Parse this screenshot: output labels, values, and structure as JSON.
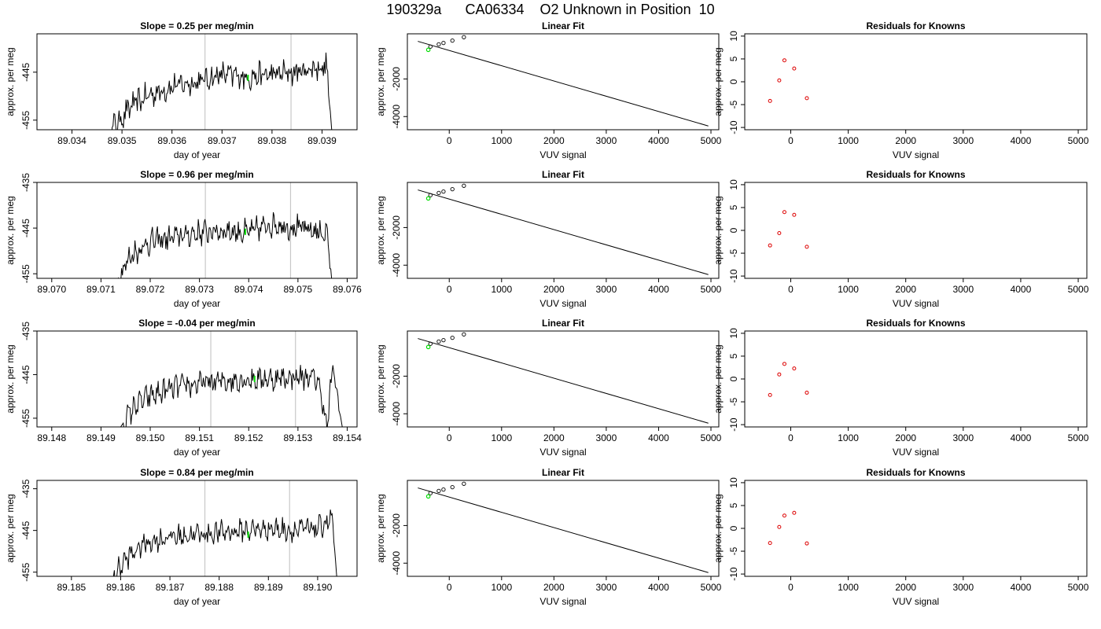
{
  "page": {
    "title": "190329a      CA06334    O2 Unknown in Position  10"
  },
  "chart_data": [
    {
      "panel": "slope-1",
      "type": "line",
      "title": "Slope =  0.25  per meg/min",
      "xlabel": "day of year",
      "ylabel": "approx. per meg",
      "xlim": [
        89.0333,
        89.0397
      ],
      "ylim": [
        -457,
        -437
      ],
      "xticks": [
        89.034,
        89.035,
        89.036,
        89.037,
        89.038,
        89.039
      ],
      "xtick_labels": [
        "89.034",
        "89.035",
        "89.036",
        "89.037",
        "89.038",
        "89.039"
      ],
      "yticks": [
        -455,
        -445
      ],
      "ytick_labels": [
        "-455",
        "-445"
      ],
      "vlines": [
        89.03666,
        89.03838
      ],
      "line_x_range": [
        89.0347,
        89.03918
      ],
      "line_start_y": -457,
      "line_trend": [
        [
          89.0347,
          -458
        ],
        [
          89.0352,
          -452
        ],
        [
          89.0355,
          -450
        ],
        [
          89.036,
          -448
        ],
        [
          89.0365,
          -447
        ],
        [
          89.037,
          -445.5
        ],
        [
          89.0375,
          -446
        ],
        [
          89.038,
          -445.5
        ],
        [
          89.0385,
          -445
        ],
        [
          89.0389,
          -444
        ],
        [
          89.0391,
          -444
        ],
        [
          89.0392,
          -458
        ]
      ],
      "highlight_point": [
        89.03752,
        -446.2
      ]
    },
    {
      "panel": "fit-1",
      "type": "scatter",
      "title": "Linear Fit",
      "xlabel": "VUV signal",
      "ylabel": "approx. per meg",
      "xlim": [
        -800,
        5150
      ],
      "ylim": [
        -4700,
        400
      ],
      "xticks": [
        0,
        1000,
        2000,
        3000,
        4000,
        5000
      ],
      "xtick_labels": [
        "0",
        "1000",
        "2000",
        "3000",
        "4000",
        "5000"
      ],
      "yticks": [
        -4000,
        -2000
      ],
      "ytick_labels": [
        "-4000",
        "-2000"
      ],
      "fit_line": [
        [
          -600,
          0
        ],
        [
          4950,
          -4500
        ]
      ],
      "knowns_x": [
        -360,
        -200,
        -110,
        60,
        280
      ],
      "knowns_y": [
        -280,
        -160,
        -86,
        40,
        220
      ],
      "unknown_point": [
        -400,
        -450
      ]
    },
    {
      "panel": "resid-1",
      "type": "scatter",
      "title": "Residuals for Knowns",
      "xlabel": "VUV signal",
      "ylabel": "approx. per meg",
      "xlim": [
        -800,
        5150
      ],
      "ylim": [
        -10.5,
        10.5
      ],
      "xticks": [
        0,
        1000,
        2000,
        3000,
        4000,
        5000
      ],
      "xtick_labels": [
        "0",
        "1000",
        "2000",
        "3000",
        "4000",
        "5000"
      ],
      "yticks": [
        -10,
        -5,
        0,
        5,
        10
      ],
      "ytick_labels": [
        "-10",
        "-5",
        "0",
        "5",
        "10"
      ],
      "x": [
        -360,
        -200,
        -110,
        60,
        280
      ],
      "y": [
        -4.2,
        0.3,
        4.7,
        2.9,
        -3.6
      ]
    },
    {
      "panel": "slope-2",
      "type": "line",
      "title": "Slope =  0.96  per meg/min",
      "xlabel": "day of year",
      "ylabel": "approx. per meg",
      "xlim": [
        89.0697,
        89.0762
      ],
      "ylim": [
        -456,
        -435
      ],
      "xticks": [
        89.07,
        89.071,
        89.072,
        89.073,
        89.074,
        89.075,
        89.076
      ],
      "xtick_labels": [
        "89.070",
        "89.071",
        "89.072",
        "89.073",
        "89.074",
        "89.075",
        "89.076"
      ],
      "yticks": [
        -455,
        -445,
        -435
      ],
      "ytick_labels": [
        "-455",
        "-445",
        "-435"
      ],
      "vlines": [
        89.07312,
        89.07485
      ],
      "line_x_range": [
        89.0713,
        89.0757
      ],
      "line_start_y": -456,
      "line_trend": [
        [
          89.0713,
          -457
        ],
        [
          89.0716,
          -451
        ],
        [
          89.072,
          -448
        ],
        [
          89.0725,
          -447
        ],
        [
          89.073,
          -446
        ],
        [
          89.0735,
          -445.5
        ],
        [
          89.074,
          -446
        ],
        [
          89.0745,
          -444
        ],
        [
          89.075,
          -445
        ],
        [
          89.0755,
          -446
        ],
        [
          89.0756,
          -446
        ],
        [
          89.0757,
          -458
        ]
      ],
      "highlight_point": [
        89.07393,
        -445.8
      ]
    },
    {
      "panel": "fit-2",
      "type": "scatter",
      "title": "Linear Fit",
      "xlabel": "VUV signal",
      "ylabel": "approx. per meg",
      "xlim": [
        -800,
        5150
      ],
      "ylim": [
        -4700,
        400
      ],
      "xticks": [
        0,
        1000,
        2000,
        3000,
        4000,
        5000
      ],
      "xtick_labels": [
        "0",
        "1000",
        "2000",
        "3000",
        "4000",
        "5000"
      ],
      "yticks": [
        -4000,
        -2000
      ],
      "ytick_labels": [
        "-4000",
        "-2000"
      ],
      "fit_line": [
        [
          -600,
          0
        ],
        [
          4950,
          -4500
        ]
      ],
      "knowns_x": [
        -360,
        -200,
        -110,
        60,
        280
      ],
      "knowns_y": [
        -280,
        -160,
        -86,
        40,
        220
      ],
      "unknown_point": [
        -400,
        -450
      ]
    },
    {
      "panel": "resid-2",
      "type": "scatter",
      "title": "Residuals for Knowns",
      "xlabel": "VUV signal",
      "ylabel": "approx. per meg",
      "xlim": [
        -800,
        5150
      ],
      "ylim": [
        -10.5,
        10.5
      ],
      "xticks": [
        0,
        1000,
        2000,
        3000,
        4000,
        5000
      ],
      "xtick_labels": [
        "0",
        "1000",
        "2000",
        "3000",
        "4000",
        "5000"
      ],
      "yticks": [
        -10,
        -5,
        0,
        5,
        10
      ],
      "ytick_labels": [
        "-10",
        "-5",
        "0",
        "5",
        "10"
      ],
      "x": [
        -360,
        -200,
        -110,
        60,
        280
      ],
      "y": [
        -3.3,
        -0.6,
        4.0,
        3.4,
        -3.6
      ]
    },
    {
      "panel": "slope-3",
      "type": "line",
      "title": "Slope =  -0.04  per meg/min",
      "xlabel": "day of year",
      "ylabel": "approx. per meg",
      "xlim": [
        89.1477,
        89.1542
      ],
      "ylim": [
        -457,
        -435
      ],
      "xticks": [
        89.148,
        89.149,
        89.15,
        89.151,
        89.152,
        89.153,
        89.154
      ],
      "xtick_labels": [
        "89.148",
        "89.149",
        "89.150",
        "89.151",
        "89.152",
        "89.153",
        "89.154"
      ],
      "yticks": [
        -455,
        -445,
        -435
      ],
      "ytick_labels": [
        "-455",
        "-445",
        "-435"
      ],
      "vlines": [
        89.15123,
        89.15295
      ],
      "line_x_range": [
        89.1494,
        89.1539
      ],
      "line_start_y": -457,
      "line_trend": [
        [
          89.1494,
          -457
        ],
        [
          89.1497,
          -452
        ],
        [
          89.15,
          -450
        ],
        [
          89.1505,
          -448
        ],
        [
          89.151,
          -447
        ],
        [
          89.1515,
          -446.5
        ],
        [
          89.152,
          -446
        ],
        [
          89.1525,
          -446
        ],
        [
          89.153,
          -445.5
        ],
        [
          89.1534,
          -446
        ],
        [
          89.1536,
          -457
        ],
        [
          89.1537,
          -443
        ],
        [
          89.1539,
          -457
        ]
      ],
      "highlight_point": [
        89.15212,
        -446.0
      ]
    },
    {
      "panel": "fit-3",
      "type": "scatter",
      "title": "Linear Fit",
      "xlabel": "VUV signal",
      "ylabel": "approx. per meg",
      "xlim": [
        -800,
        5150
      ],
      "ylim": [
        -4700,
        400
      ],
      "xticks": [
        0,
        1000,
        2000,
        3000,
        4000,
        5000
      ],
      "xtick_labels": [
        "0",
        "1000",
        "2000",
        "3000",
        "4000",
        "5000"
      ],
      "yticks": [
        -4000,
        -2000
      ],
      "ytick_labels": [
        "-4000",
        "-2000"
      ],
      "fit_line": [
        [
          -600,
          0
        ],
        [
          4950,
          -4500
        ]
      ],
      "knowns_x": [
        -360,
        -200,
        -110,
        60,
        280
      ],
      "knowns_y": [
        -280,
        -160,
        -86,
        40,
        220
      ],
      "unknown_point": [
        -400,
        -450
      ]
    },
    {
      "panel": "resid-3",
      "type": "scatter",
      "title": "Residuals for Knowns",
      "xlabel": "VUV signal",
      "ylabel": "approx. per meg",
      "xlim": [
        -800,
        5150
      ],
      "ylim": [
        -10.5,
        10.5
      ],
      "xticks": [
        0,
        1000,
        2000,
        3000,
        4000,
        5000
      ],
      "xtick_labels": [
        "0",
        "1000",
        "2000",
        "3000",
        "4000",
        "5000"
      ],
      "yticks": [
        -10,
        -5,
        0,
        5,
        10
      ],
      "ytick_labels": [
        "-10",
        "-5",
        "0",
        "5",
        "10"
      ],
      "x": [
        -360,
        -200,
        -110,
        60,
        280
      ],
      "y": [
        -3.5,
        1.0,
        3.3,
        2.3,
        -3.0
      ]
    },
    {
      "panel": "slope-4",
      "type": "line",
      "title": "Slope =  0.84  per meg/min",
      "xlabel": "day of year",
      "ylabel": "approx. per meg",
      "xlim": [
        89.1843,
        89.1908
      ],
      "ylim": [
        -456,
        -433
      ],
      "xticks": [
        89.185,
        89.186,
        89.187,
        89.188,
        89.189,
        89.19
      ],
      "xtick_labels": [
        "89.185",
        "89.186",
        "89.187",
        "89.188",
        "89.189",
        "89.190"
      ],
      "yticks": [
        -455,
        -445,
        -435
      ],
      "ytick_labels": [
        "-455",
        "-445",
        "-435"
      ],
      "vlines": [
        89.18771,
        89.18943
      ],
      "line_x_range": [
        89.1858,
        89.1904
      ],
      "line_start_y": -456,
      "line_trend": [
        [
          89.1858,
          -457
        ],
        [
          89.1861,
          -452
        ],
        [
          89.1865,
          -448
        ],
        [
          89.187,
          -446.5
        ],
        [
          89.1875,
          -446
        ],
        [
          89.188,
          -445.5
        ],
        [
          89.1885,
          -445
        ],
        [
          89.189,
          -444.5
        ],
        [
          89.1895,
          -445
        ],
        [
          89.19,
          -444.5
        ],
        [
          89.1903,
          -442
        ],
        [
          89.1904,
          -458
        ]
      ],
      "highlight_point": [
        89.18859,
        -446.0
      ]
    },
    {
      "panel": "fit-4",
      "type": "scatter",
      "title": "Linear Fit",
      "xlabel": "VUV signal",
      "ylabel": "approx. per meg",
      "xlim": [
        -800,
        5150
      ],
      "ylim": [
        -4700,
        400
      ],
      "xticks": [
        0,
        1000,
        2000,
        3000,
        4000,
        5000
      ],
      "xtick_labels": [
        "0",
        "1000",
        "2000",
        "3000",
        "4000",
        "5000"
      ],
      "yticks": [
        -4000,
        -2000
      ],
      "ytick_labels": [
        "-4000",
        "-2000"
      ],
      "fit_line": [
        [
          -600,
          0
        ],
        [
          4950,
          -4500
        ]
      ],
      "knowns_x": [
        -360,
        -200,
        -110,
        60,
        280
      ],
      "knowns_y": [
        -280,
        -160,
        -86,
        40,
        220
      ],
      "unknown_point": [
        -400,
        -450
      ]
    },
    {
      "panel": "resid-4",
      "type": "scatter",
      "title": "Residuals for Knowns",
      "xlabel": "VUV signal",
      "ylabel": "approx. per meg",
      "xlim": [
        -800,
        5150
      ],
      "ylim": [
        -10.5,
        10.5
      ],
      "xticks": [
        0,
        1000,
        2000,
        3000,
        4000,
        5000
      ],
      "xtick_labels": [
        "0",
        "1000",
        "2000",
        "3000",
        "4000",
        "5000"
      ],
      "yticks": [
        -10,
        -5,
        0,
        5,
        10
      ],
      "ytick_labels": [
        "-10",
        "-5",
        "0",
        "5",
        "10"
      ],
      "x": [
        -360,
        -200,
        -110,
        60,
        280
      ],
      "y": [
        -3.2,
        0.3,
        2.8,
        3.4,
        -3.3
      ]
    }
  ],
  "colors": {
    "trace": "#000000",
    "highlight": "#00dd00",
    "residual_points": "#dd0000",
    "vline": "#c8c8c8",
    "axis": "#000000"
  }
}
